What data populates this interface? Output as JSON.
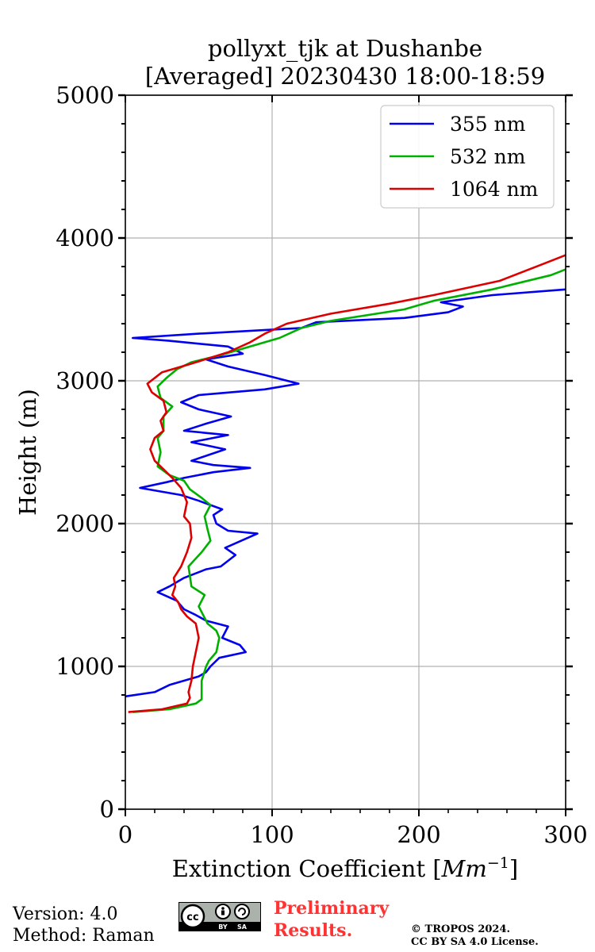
{
  "chart_data": {
    "type": "line",
    "title_line1": "pollyxt_tjk at Dushanbe",
    "title_line2": "[Averaged] 20230430 18:00-18:59",
    "xlabel": "Extinction Coefficient [Mm⁻¹]",
    "ylabel": "Height (m)",
    "xlim": [
      0,
      300
    ],
    "ylim": [
      0,
      5000
    ],
    "xticks": [
      0,
      100,
      200,
      300
    ],
    "yticks": [
      0,
      1000,
      2000,
      3000,
      4000,
      5000
    ],
    "grid": true,
    "legend_position": "top-right",
    "series": [
      {
        "name": "355 nm",
        "color": "#0000ee",
        "points": [
          [
            0,
            790
          ],
          [
            20,
            820
          ],
          [
            30,
            870
          ],
          [
            50,
            930
          ],
          [
            55,
            960
          ],
          [
            58,
            1000
          ],
          [
            64,
            1060
          ],
          [
            82,
            1100
          ],
          [
            78,
            1150
          ],
          [
            66,
            1200
          ],
          [
            70,
            1280
          ],
          [
            55,
            1320
          ],
          [
            48,
            1360
          ],
          [
            40,
            1400
          ],
          [
            35,
            1460
          ],
          [
            22,
            1520
          ],
          [
            30,
            1560
          ],
          [
            40,
            1620
          ],
          [
            55,
            1680
          ],
          [
            65,
            1700
          ],
          [
            75,
            1780
          ],
          [
            68,
            1830
          ],
          [
            90,
            1930
          ],
          [
            70,
            1950
          ],
          [
            62,
            2000
          ],
          [
            60,
            2060
          ],
          [
            66,
            2100
          ],
          [
            50,
            2160
          ],
          [
            38,
            2200
          ],
          [
            10,
            2250
          ],
          [
            28,
            2290
          ],
          [
            40,
            2320
          ],
          [
            60,
            2360
          ],
          [
            85,
            2390
          ],
          [
            60,
            2410
          ],
          [
            45,
            2440
          ],
          [
            68,
            2520
          ],
          [
            45,
            2570
          ],
          [
            70,
            2620
          ],
          [
            40,
            2650
          ],
          [
            55,
            2700
          ],
          [
            72,
            2750
          ],
          [
            50,
            2800
          ],
          [
            38,
            2850
          ],
          [
            50,
            2900
          ],
          [
            95,
            2940
          ],
          [
            118,
            2980
          ],
          [
            95,
            3040
          ],
          [
            70,
            3100
          ],
          [
            55,
            3150
          ],
          [
            80,
            3190
          ],
          [
            70,
            3240
          ],
          [
            30,
            3280
          ],
          [
            5,
            3300
          ],
          [
            50,
            3330
          ],
          [
            120,
            3370
          ],
          [
            130,
            3410
          ],
          [
            190,
            3440
          ],
          [
            220,
            3480
          ],
          [
            230,
            3520
          ],
          [
            215,
            3550
          ],
          [
            250,
            3600
          ],
          [
            300,
            3640
          ]
        ]
      },
      {
        "name": "532 nm",
        "color": "#00b000",
        "points": [
          [
            5,
            680
          ],
          [
            30,
            700
          ],
          [
            48,
            740
          ],
          [
            52,
            770
          ],
          [
            52,
            900
          ],
          [
            55,
            1000
          ],
          [
            57,
            1040
          ],
          [
            62,
            1100
          ],
          [
            64,
            1200
          ],
          [
            62,
            1250
          ],
          [
            56,
            1300
          ],
          [
            50,
            1420
          ],
          [
            54,
            1500
          ],
          [
            45,
            1560
          ],
          [
            43,
            1700
          ],
          [
            52,
            1800
          ],
          [
            58,
            1880
          ],
          [
            56,
            1960
          ],
          [
            54,
            2050
          ],
          [
            58,
            2130
          ],
          [
            52,
            2180
          ],
          [
            44,
            2240
          ],
          [
            40,
            2300
          ],
          [
            30,
            2340
          ],
          [
            22,
            2400
          ],
          [
            24,
            2500
          ],
          [
            22,
            2600
          ],
          [
            26,
            2650
          ],
          [
            26,
            2750
          ],
          [
            32,
            2820
          ],
          [
            24,
            2880
          ],
          [
            22,
            2960
          ],
          [
            28,
            3020
          ],
          [
            35,
            3080
          ],
          [
            45,
            3130
          ],
          [
            65,
            3180
          ],
          [
            85,
            3240
          ],
          [
            105,
            3300
          ],
          [
            120,
            3370
          ],
          [
            140,
            3420
          ],
          [
            190,
            3500
          ],
          [
            210,
            3560
          ],
          [
            250,
            3640
          ],
          [
            290,
            3740
          ],
          [
            300,
            3780
          ]
        ]
      },
      {
        "name": "1064 nm",
        "color": "#dd0000",
        "points": [
          [
            2,
            680
          ],
          [
            25,
            700
          ],
          [
            42,
            740
          ],
          [
            44,
            780
          ],
          [
            43,
            820
          ],
          [
            45,
            900
          ],
          [
            46,
            1000
          ],
          [
            48,
            1100
          ],
          [
            50,
            1200
          ],
          [
            48,
            1300
          ],
          [
            42,
            1350
          ],
          [
            38,
            1400
          ],
          [
            36,
            1450
          ],
          [
            32,
            1500
          ],
          [
            34,
            1560
          ],
          [
            33,
            1620
          ],
          [
            38,
            1700
          ],
          [
            42,
            1800
          ],
          [
            45,
            1900
          ],
          [
            44,
            2000
          ],
          [
            40,
            2050
          ],
          [
            42,
            2150
          ],
          [
            38,
            2250
          ],
          [
            32,
            2320
          ],
          [
            26,
            2380
          ],
          [
            20,
            2440
          ],
          [
            17,
            2520
          ],
          [
            20,
            2600
          ],
          [
            26,
            2650
          ],
          [
            24,
            2720
          ],
          [
            28,
            2780
          ],
          [
            26,
            2860
          ],
          [
            18,
            2920
          ],
          [
            15,
            2980
          ],
          [
            25,
            3060
          ],
          [
            45,
            3120
          ],
          [
            70,
            3200
          ],
          [
            85,
            3270
          ],
          [
            95,
            3330
          ],
          [
            110,
            3400
          ],
          [
            140,
            3470
          ],
          [
            180,
            3540
          ],
          [
            210,
            3600
          ],
          [
            255,
            3700
          ],
          [
            285,
            3820
          ],
          [
            300,
            3880
          ]
        ]
      }
    ]
  },
  "footer": {
    "version": "Version: 4.0",
    "method": "Method: Raman",
    "preliminary_line1": "Preliminary",
    "preliminary_line2": "Results.",
    "copyright_line1": "© TROPOS 2024.",
    "copyright_line2": "CC BY SA 4.0 License.",
    "license_badge": {
      "cc": "cc",
      "by": "BY",
      "sa": "SA"
    }
  }
}
